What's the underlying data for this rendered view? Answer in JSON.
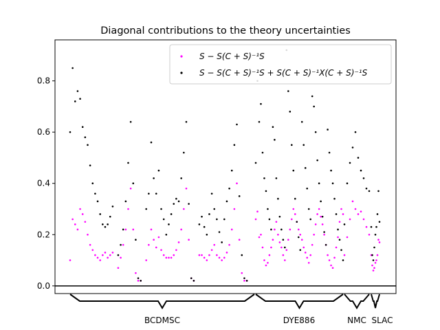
{
  "chart_data": {
    "type": "scatter",
    "title": "Diagonal contributions to the theory uncertainties",
    "xlabel": "",
    "ylabel": "",
    "ylim": [
      -0.03,
      0.96
    ],
    "yticks": [
      "0.0",
      "0.2",
      "0.4",
      "0.6",
      "0.8"
    ],
    "grid": false,
    "legend_position": "top-right",
    "colors": {
      "series1": "#ff00ff",
      "series2": "#000000"
    },
    "series": [
      {
        "name": "S − S(C + S)⁻¹S",
        "marker": "point",
        "color": "#ff00ff"
      },
      {
        "name": "S − S(C + S)⁻¹S + S(C + S)⁻¹X(C + S)⁻¹S",
        "marker": "point",
        "color": "#000000"
      }
    ],
    "segments": [
      {
        "dataset": "BCDMSC",
        "groups": [
          {
            "s1": [
              0.1,
              0.26,
              0.24,
              0.22,
              0.3,
              0.28,
              0.25,
              0.2,
              0.16,
              0.14,
              0.12,
              0.11,
              0.1,
              0.12,
              0.13,
              0.11,
              0.12,
              0.13
            ],
            "s2": [
              0.6,
              0.85,
              0.72,
              0.76,
              0.73,
              0.62,
              0.58,
              0.55,
              0.47,
              0.4,
              0.36,
              0.33,
              0.28,
              0.24,
              0.23,
              0.24,
              0.27,
              0.31
            ]
          },
          {
            "s1": [
              0.07,
              0.11,
              0.16,
              0.22,
              0.3,
              0.38,
              0.22,
              0.05,
              0.02,
              0.02
            ],
            "s2": [
              0.12,
              0.16,
              0.22,
              0.33,
              0.48,
              0.64,
              0.4,
              0.18,
              0.03,
              0.02
            ]
          },
          {
            "s1": [
              0.1,
              0.16,
              0.22,
              0.18,
              0.15,
              0.19,
              0.14,
              0.12,
              0.11,
              0.11,
              0.11,
              0.12,
              0.14,
              0.17,
              0.22,
              0.3,
              0.38,
              0.18,
              0.03,
              0.02
            ],
            "s2": [
              0.3,
              0.36,
              0.56,
              0.42,
              0.36,
              0.45,
              0.3,
              0.26,
              0.2,
              0.24,
              0.28,
              0.32,
              0.34,
              0.33,
              0.42,
              0.52,
              0.64,
              0.32,
              0.03,
              0.02
            ]
          },
          {
            "s1": [
              0.12,
              0.12,
              0.11,
              0.1,
              0.12,
              0.14,
              0.16,
              0.12,
              0.11,
              0.1,
              0.11,
              0.13,
              0.16,
              0.22,
              0.3,
              0.4,
              0.18,
              0.05,
              0.02,
              0.02
            ],
            "s2": [
              0.24,
              0.27,
              0.23,
              0.2,
              0.28,
              0.36,
              0.3,
              0.26,
              0.21,
              0.17,
              0.26,
              0.33,
              0.38,
              0.45,
              0.55,
              0.63,
              0.35,
              0.12,
              0.03,
              0.02
            ]
          }
        ]
      },
      {
        "dataset": "DYE886",
        "groups": [
          {
            "s1": [
              0.26,
              0.29,
              0.19,
              0.2,
              0.15,
              0.1,
              0.08,
              0.09,
              0.12,
              0.15,
              0.18,
              0.22,
              0.25,
              0.2,
              0.17,
              0.15,
              0.12,
              0.1,
              0.14,
              0.18,
              0.22,
              0.26,
              0.3,
              0.28,
              0.25,
              0.22,
              0.2,
              0.18,
              0.15,
              0.13,
              0.11,
              0.09,
              0.12,
              0.16,
              0.2,
              0.24,
              0.28,
              0.3,
              0.27,
              0.24,
              0.2,
              0.16,
              0.12,
              0.1,
              0.08,
              0.07,
              0.11,
              0.15,
              0.19,
              0.25,
              0.3,
              0.28
            ],
            "s2": [
              0.48,
              0.8,
              0.64,
              0.71,
              0.52,
              0.42,
              0.37,
              0.3,
              0.26,
              0.22,
              0.62,
              0.57,
              0.42,
              0.34,
              0.27,
              0.22,
              0.18,
              0.15,
              0.92,
              0.76,
              0.68,
              0.55,
              0.45,
              0.34,
              0.25,
              0.19,
              0.14,
              0.64,
              0.55,
              0.46,
              0.38,
              0.3,
              0.26,
              0.74,
              0.7,
              0.6,
              0.49,
              0.4,
              0.33,
              0.27,
              0.21,
              0.16,
              0.61,
              0.52,
              0.45,
              0.4,
              0.34,
              0.28,
              0.22,
              0.18,
              0.14,
              0.1
            ]
          }
        ]
      },
      {
        "dataset": "NMC",
        "groups": [
          {
            "s1": [
              0.12,
              0.19,
              0.26,
              0.33,
              0.3,
              0.28,
              0.29,
              0.26,
              0.23,
              0.2
            ],
            "s2": [
              0.24,
              0.4,
              0.48,
              0.54,
              0.6,
              0.5,
              0.45,
              0.42,
              0.38,
              0.37
            ]
          }
        ]
      },
      {
        "dataset": "SLAC",
        "groups": [
          {
            "s1": [
              0.12,
              0.08,
              0.06,
              0.07,
              0.09,
              0.1,
              0.12,
              0.18,
              0.17
            ],
            "s2": [
              0.23,
              0.12,
              0.1,
              0.15,
              0.2,
              0.23,
              0.28,
              0.37,
              0.25
            ]
          }
        ]
      }
    ]
  }
}
